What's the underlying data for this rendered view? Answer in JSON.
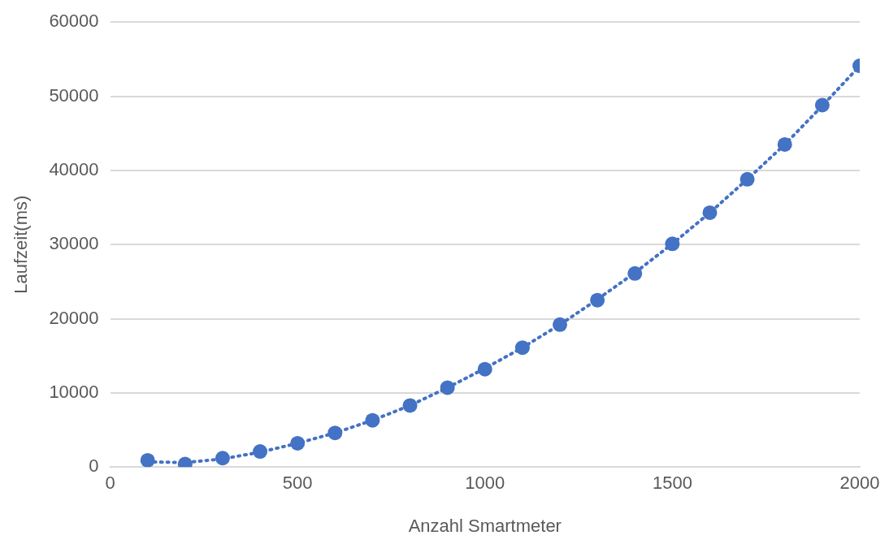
{
  "chart_data": {
    "type": "scatter",
    "xlabel": "Anzahl Smartmeter",
    "ylabel": "Laufzeit(ms)",
    "xlim": [
      0,
      2000
    ],
    "xticks": [
      0,
      500,
      1000,
      1500,
      2000
    ],
    "ylim": [
      0,
      60000
    ],
    "yticks": [
      0,
      10000,
      20000,
      30000,
      40000,
      50000,
      60000
    ],
    "grid": "y",
    "legend": false,
    "series": [
      {
        "type": "scatter",
        "color": "#4472c4",
        "marker": "circle",
        "x": [
          100,
          200,
          300,
          400,
          500,
          600,
          700,
          800,
          900,
          1000,
          1100,
          1200,
          1300,
          1400,
          1500,
          1600,
          1700,
          1800,
          1900,
          2000
        ],
        "values": [
          900,
          400,
          1200,
          2100,
          3200,
          4600,
          6300,
          8300,
          10700,
          13200,
          16100,
          19200,
          22500,
          26100,
          30100,
          34300,
          38800,
          43500,
          48800,
          54100
        ]
      },
      {
        "type": "line",
        "color": "#4472c4",
        "marker": "none",
        "line_style": "dotted",
        "x": [
          100,
          200,
          300,
          400,
          500,
          600,
          700,
          800,
          900,
          1000,
          1100,
          1200,
          1300,
          1400,
          1500,
          1600,
          1700,
          1800,
          1900,
          2000
        ],
        "values": [
          700,
          600,
          1100,
          2000,
          3200,
          4600,
          6300,
          8300,
          10700,
          13300,
          16100,
          19200,
          22600,
          26200,
          30100,
          34300,
          38800,
          43500,
          48700,
          54100
        ]
      }
    ]
  }
}
